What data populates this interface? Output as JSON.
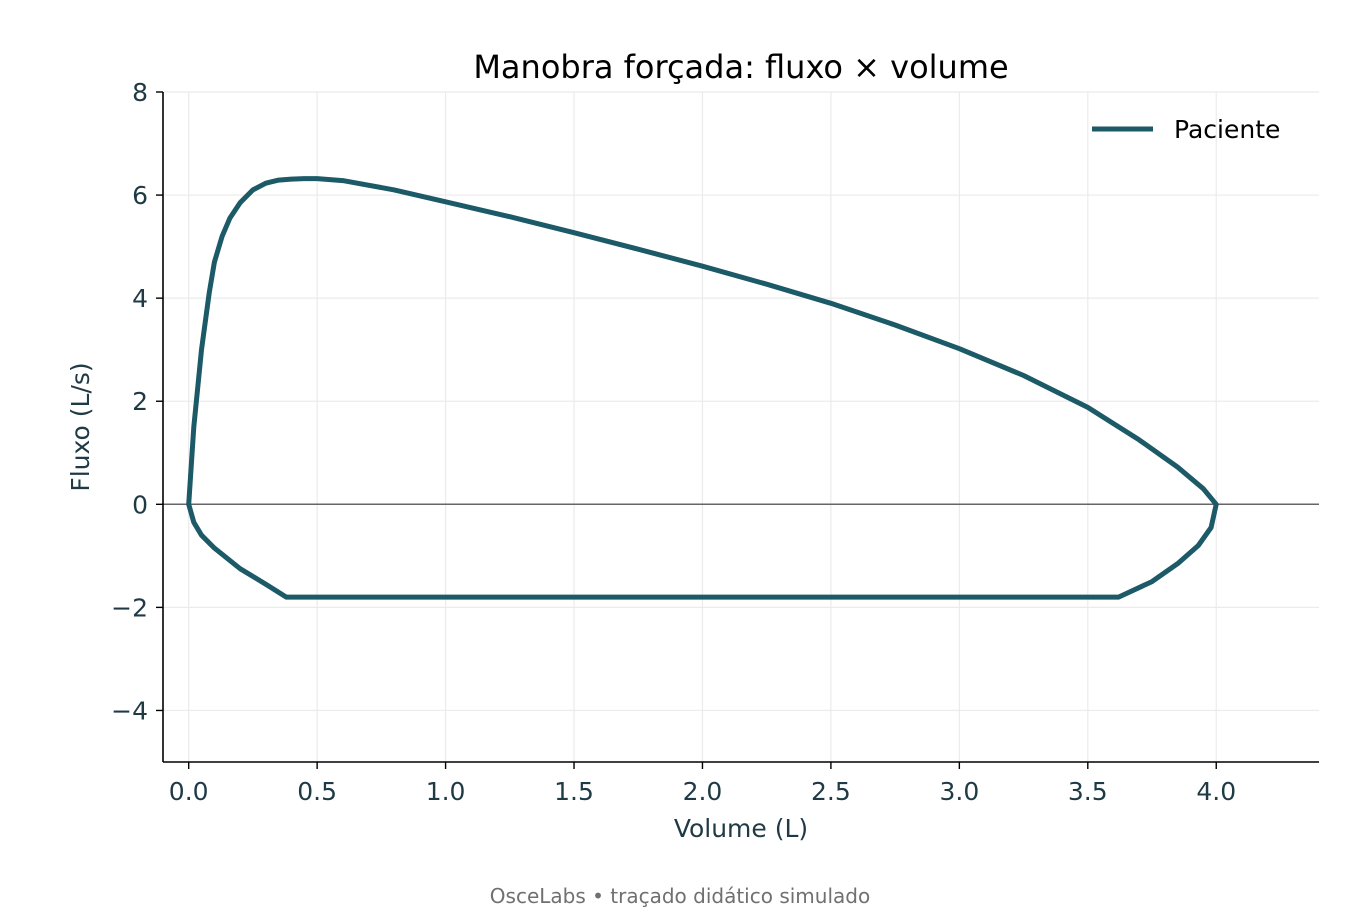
{
  "chart_data": {
    "type": "line",
    "title": "Manobra forçada: fluxo × volume",
    "xlabel": "Volume (L)",
    "ylabel": "Fluxo (L/s)",
    "xlim": [
      -0.1,
      4.4
    ],
    "ylim": [
      -5,
      8
    ],
    "xticks": [
      0.0,
      0.5,
      1.0,
      1.5,
      2.0,
      2.5,
      3.0,
      3.5,
      4.0
    ],
    "xtick_labels": [
      "0.0",
      "0.5",
      "1.0",
      "1.5",
      "2.0",
      "2.5",
      "3.0",
      "3.5",
      "4.0"
    ],
    "yticks": [
      -4,
      -2,
      0,
      2,
      4,
      6,
      8
    ],
    "ytick_labels": [
      "−4",
      "−2",
      "0",
      "2",
      "4",
      "6",
      "8"
    ],
    "grid": true,
    "zero_line": true,
    "legend_position": "top-right",
    "colors": {
      "series": "#1b5a66",
      "axis": "#000000",
      "tick_text": "#1f3a45",
      "grid": "#ebebeb",
      "zero_line": "#666666"
    },
    "series": [
      {
        "name": "Paciente",
        "x": [
          0.0,
          0.02,
          0.05,
          0.08,
          0.1,
          0.13,
          0.16,
          0.2,
          0.25,
          0.3,
          0.35,
          0.4,
          0.45,
          0.5,
          0.6,
          0.8,
          1.0,
          1.25,
          1.5,
          1.75,
          2.0,
          2.25,
          2.5,
          2.75,
          3.0,
          3.25,
          3.5,
          3.7,
          3.85,
          3.95,
          4.0,
          3.98,
          3.93,
          3.85,
          3.75,
          3.62,
          2.5,
          1.5,
          0.38,
          0.3,
          0.2,
          0.1,
          0.05,
          0.02,
          0.0
        ],
        "y": [
          0.0,
          1.5,
          3.0,
          4.1,
          4.7,
          5.2,
          5.55,
          5.85,
          6.1,
          6.23,
          6.29,
          6.31,
          6.32,
          6.32,
          6.28,
          6.1,
          5.87,
          5.58,
          5.27,
          4.95,
          4.62,
          4.27,
          3.9,
          3.48,
          3.02,
          2.5,
          1.88,
          1.25,
          0.72,
          0.3,
          0.0,
          -0.45,
          -0.8,
          -1.15,
          -1.5,
          -1.8,
          -1.8,
          -1.8,
          -1.8,
          -1.55,
          -1.25,
          -0.85,
          -0.6,
          -0.35,
          0.0
        ]
      }
    ]
  },
  "footer": {
    "text": "OsceLabs • traçado didático simulado"
  }
}
